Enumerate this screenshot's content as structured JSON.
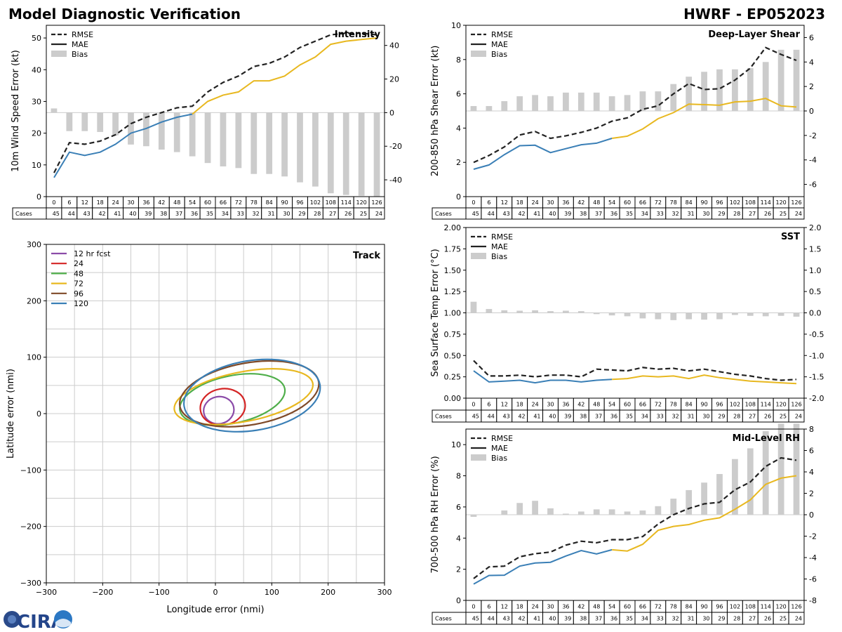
{
  "header": {
    "left_title": "Model Diagnostic Verification",
    "right_title": "HWRF - EP052023"
  },
  "logo": {
    "text": "CIRA"
  },
  "table": {
    "hours": [
      0,
      6,
      12,
      18,
      24,
      30,
      36,
      42,
      48,
      54,
      60,
      66,
      72,
      78,
      84,
      90,
      96,
      102,
      108,
      114,
      120,
      126
    ],
    "cases_label": "Cases",
    "cases": [
      45,
      44,
      43,
      42,
      41,
      40,
      39,
      38,
      37,
      36,
      35,
      34,
      33,
      32,
      31,
      30,
      29,
      28,
      27,
      26,
      25,
      24
    ]
  },
  "legend_labels": {
    "rmse": "RMSE",
    "mae": "MAE",
    "bias": "Bias"
  },
  "colors": {
    "rmse": "#222222",
    "mae_early": "#3a7fb6",
    "mae_late": "#e8b820",
    "bias": "#cccccc",
    "grid": "#cccccc",
    "track": [
      "#8b4ba8",
      "#d42424",
      "#4fae4a",
      "#e8b820",
      "#7f4a28",
      "#3a7fb6"
    ]
  },
  "chart_data": [
    {
      "id": "intensity",
      "type": "line",
      "title": "Intensity",
      "ylabel": "10m Wind Speed Error (kt)",
      "ylim": [
        0,
        54
      ],
      "yticks": [
        0,
        10,
        20,
        30,
        40,
        50
      ],
      "y2lim": [
        -50,
        52
      ],
      "y2ticks": [
        -40,
        -20,
        0,
        20,
        40
      ],
      "x": [
        0,
        6,
        12,
        18,
        24,
        30,
        36,
        42,
        48,
        54,
        60,
        66,
        72,
        78,
        84,
        90,
        96,
        102,
        108,
        114,
        120,
        126
      ],
      "rmse": [
        7.5,
        17,
        16.5,
        17.5,
        19.5,
        23,
        25,
        26.5,
        28,
        28.5,
        33,
        36,
        38,
        41,
        42,
        44,
        47,
        49,
        51,
        51.5,
        51.5,
        51
      ],
      "mae": [
        6,
        14,
        13,
        14,
        16.5,
        20,
        21.5,
        23.5,
        25,
        26,
        30,
        32,
        33,
        36.5,
        36.5,
        38,
        41.5,
        44,
        48,
        49,
        49.5,
        50
      ],
      "bias": [
        2.5,
        -11,
        -11,
        -11.5,
        -13.5,
        -19,
        -20,
        -22,
        -23.5,
        -26,
        -30,
        -32,
        -33,
        -36.5,
        -36.5,
        -38,
        -41.5,
        -44,
        -48,
        -49,
        -49.5,
        -50
      ]
    },
    {
      "id": "shear",
      "type": "line",
      "title": "Deep-Layer Shear",
      "ylabel": "200-850 hPa Shear Error (kt)",
      "ylim": [
        0,
        10
      ],
      "yticks": [
        0,
        2,
        4,
        6,
        8,
        10
      ],
      "y2lim": [
        -7,
        7
      ],
      "y2ticks": [
        -6,
        -4,
        -2,
        0,
        2,
        4,
        6
      ],
      "x": [
        0,
        6,
        12,
        18,
        24,
        30,
        36,
        42,
        48,
        54,
        60,
        66,
        72,
        78,
        84,
        90,
        96,
        102,
        108,
        114,
        120,
        126
      ],
      "rmse": [
        2,
        2.4,
        2.9,
        3.6,
        3.8,
        3.4,
        3.55,
        3.75,
        4.0,
        4.4,
        4.6,
        5.1,
        5.3,
        6.0,
        6.6,
        6.25,
        6.3,
        6.8,
        7.5,
        8.7,
        8.3,
        7.95
      ],
      "mae": [
        1.6,
        1.85,
        2.45,
        2.97,
        3.0,
        2.57,
        2.8,
        3.03,
        3.12,
        3.4,
        3.53,
        3.95,
        4.55,
        4.9,
        5.4,
        5.37,
        5.33,
        5.53,
        5.57,
        5.73,
        5.3,
        5.23
      ],
      "bias": [
        0.4,
        0.4,
        0.8,
        1.2,
        1.3,
        1.2,
        1.5,
        1.5,
        1.5,
        1.2,
        1.3,
        1.6,
        1.6,
        2.2,
        2.8,
        3.2,
        3.4,
        3.4,
        3.5,
        4.0,
        5.0,
        5.0
      ]
    },
    {
      "id": "sst",
      "type": "line",
      "title": "SST",
      "ylabel": "Sea Surface Temp Error (°C)",
      "ylim": [
        0,
        2.0
      ],
      "yticks": [
        0.0,
        0.25,
        0.5,
        0.75,
        1.0,
        1.25,
        1.5,
        1.75,
        2.0
      ],
      "y2lim": [
        -2.0,
        2.0
      ],
      "y2ticks": [
        -2.0,
        -1.5,
        -1.0,
        -0.5,
        0.0,
        0.5,
        1.0,
        1.5,
        2.0
      ],
      "x": [
        0,
        6,
        12,
        18,
        24,
        30,
        36,
        42,
        48,
        54,
        60,
        66,
        72,
        78,
        84,
        90,
        96,
        102,
        108,
        114,
        120,
        126
      ],
      "rmse": [
        0.44,
        0.26,
        0.26,
        0.27,
        0.25,
        0.27,
        0.27,
        0.25,
        0.34,
        0.33,
        0.32,
        0.36,
        0.34,
        0.35,
        0.32,
        0.34,
        0.31,
        0.28,
        0.26,
        0.23,
        0.21,
        0.22
      ],
      "mae": [
        0.32,
        0.19,
        0.2,
        0.21,
        0.18,
        0.21,
        0.21,
        0.19,
        0.21,
        0.22,
        0.23,
        0.26,
        0.25,
        0.26,
        0.23,
        0.27,
        0.24,
        0.22,
        0.2,
        0.19,
        0.18,
        0.17
      ],
      "bias": [
        0.26,
        0.09,
        0.06,
        0.05,
        0.06,
        0.04,
        0.05,
        0.04,
        -0.03,
        -0.06,
        -0.08,
        -0.13,
        -0.15,
        -0.17,
        -0.15,
        -0.16,
        -0.15,
        -0.05,
        -0.07,
        -0.08,
        -0.07,
        -0.09
      ]
    },
    {
      "id": "rh",
      "type": "line",
      "title": "Mid-Level RH",
      "ylabel": "700-500 hPa RH Error (%)",
      "ylim": [
        0,
        11
      ],
      "yticks": [
        0,
        2,
        4,
        6,
        8,
        10
      ],
      "y2lim": [
        -8,
        8
      ],
      "y2ticks": [
        -8,
        -6,
        -4,
        -2,
        0,
        2,
        4,
        6,
        8
      ],
      "x": [
        0,
        6,
        12,
        18,
        24,
        30,
        36,
        42,
        48,
        54,
        60,
        66,
        72,
        78,
        84,
        90,
        96,
        102,
        108,
        114,
        120,
        126
      ],
      "rmse": [
        1.4,
        2.15,
        2.2,
        2.8,
        3.0,
        3.1,
        3.55,
        3.8,
        3.7,
        3.9,
        3.9,
        4.1,
        4.9,
        5.5,
        5.9,
        6.2,
        6.3,
        7.1,
        7.6,
        8.6,
        9.15,
        9.0
      ],
      "mae": [
        1.05,
        1.6,
        1.62,
        2.2,
        2.4,
        2.45,
        2.85,
        3.2,
        2.98,
        3.25,
        3.17,
        3.6,
        4.5,
        4.75,
        4.87,
        5.15,
        5.3,
        5.85,
        6.45,
        7.45,
        7.85,
        8.0
      ],
      "bias": [
        -0.2,
        0.0,
        0.4,
        1.1,
        1.3,
        0.6,
        0.1,
        0.3,
        0.5,
        0.5,
        0.3,
        0.4,
        0.8,
        1.5,
        2.3,
        3.0,
        3.8,
        5.2,
        6.2,
        7.8,
        8.5,
        8.5
      ]
    },
    {
      "id": "track",
      "type": "scatter",
      "title": "Track",
      "xlabel": "Longitude error (nmi)",
      "ylabel": "Latitude error (nmi)",
      "xlim": [
        -300,
        300
      ],
      "ylim": [
        -300,
        300
      ],
      "ticks": [
        -300,
        -200,
        -100,
        0,
        100,
        200,
        300
      ],
      "grid_step": 50,
      "ellipses": [
        {
          "label": "12 hr fcst",
          "cx": 6,
          "cy": 6,
          "rx": 27,
          "ry": 24,
          "angle": 12
        },
        {
          "label": "24",
          "cx": 13,
          "cy": 12,
          "rx": 40,
          "ry": 32,
          "angle": 10
        },
        {
          "label": "48",
          "cx": 30,
          "cy": 25,
          "rx": 95,
          "ry": 42,
          "angle": 12
        },
        {
          "label": "72",
          "cx": 50,
          "cy": 30,
          "rx": 125,
          "ry": 44,
          "angle": 11
        },
        {
          "label": "96",
          "cx": 60,
          "cy": 35,
          "rx": 125,
          "ry": 55,
          "angle": 10
        },
        {
          "label": "120",
          "cx": 65,
          "cy": 32,
          "rx": 122,
          "ry": 62,
          "angle": 9
        }
      ]
    }
  ]
}
